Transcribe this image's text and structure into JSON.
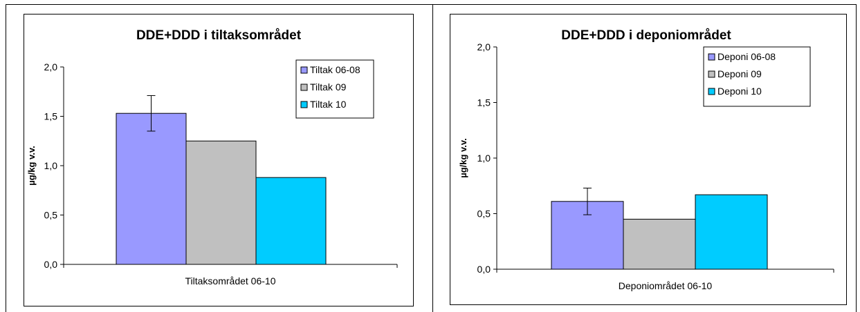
{
  "chart_data": [
    {
      "type": "bar",
      "title": "DDE+DDD i tiltaksområdet",
      "xlabel": "Tiltaksområdet 06-10",
      "ylabel": "µg/kg v.v.",
      "ylim": [
        0,
        2.0
      ],
      "yticks": [
        "0,0",
        "0,5",
        "1,0",
        "1,5",
        "2,0"
      ],
      "categories": [
        "Tiltaksområdet 06-10"
      ],
      "legend_position": "top-right",
      "series": [
        {
          "name": "Tiltak 06-08",
          "values": [
            1.53
          ],
          "error": [
            0.18
          ],
          "color": "#9999ff"
        },
        {
          "name": "Tiltak 09",
          "values": [
            1.25
          ],
          "color": "#c0c0c0"
        },
        {
          "name": "Tiltak 10",
          "values": [
            0.88
          ],
          "color": "#00ccff"
        }
      ]
    },
    {
      "type": "bar",
      "title": "DDE+DDD i deponiområdet",
      "xlabel": "Deponiområdet 06-10",
      "ylabel": "µg/kg v.v.",
      "ylim": [
        0,
        2.0
      ],
      "yticks": [
        "0,0",
        "0,5",
        "1,0",
        "1,5",
        "2,0"
      ],
      "categories": [
        "Deponiområdet 06-10"
      ],
      "legend_position": "top-right",
      "series": [
        {
          "name": "Deponi 06-08",
          "values": [
            0.61
          ],
          "error": [
            0.12
          ],
          "color": "#9999ff"
        },
        {
          "name": "Deponi 09",
          "values": [
            0.45
          ],
          "color": "#c0c0c0"
        },
        {
          "name": "Deponi 10",
          "values": [
            0.67
          ],
          "color": "#00ccff"
        }
      ]
    }
  ]
}
